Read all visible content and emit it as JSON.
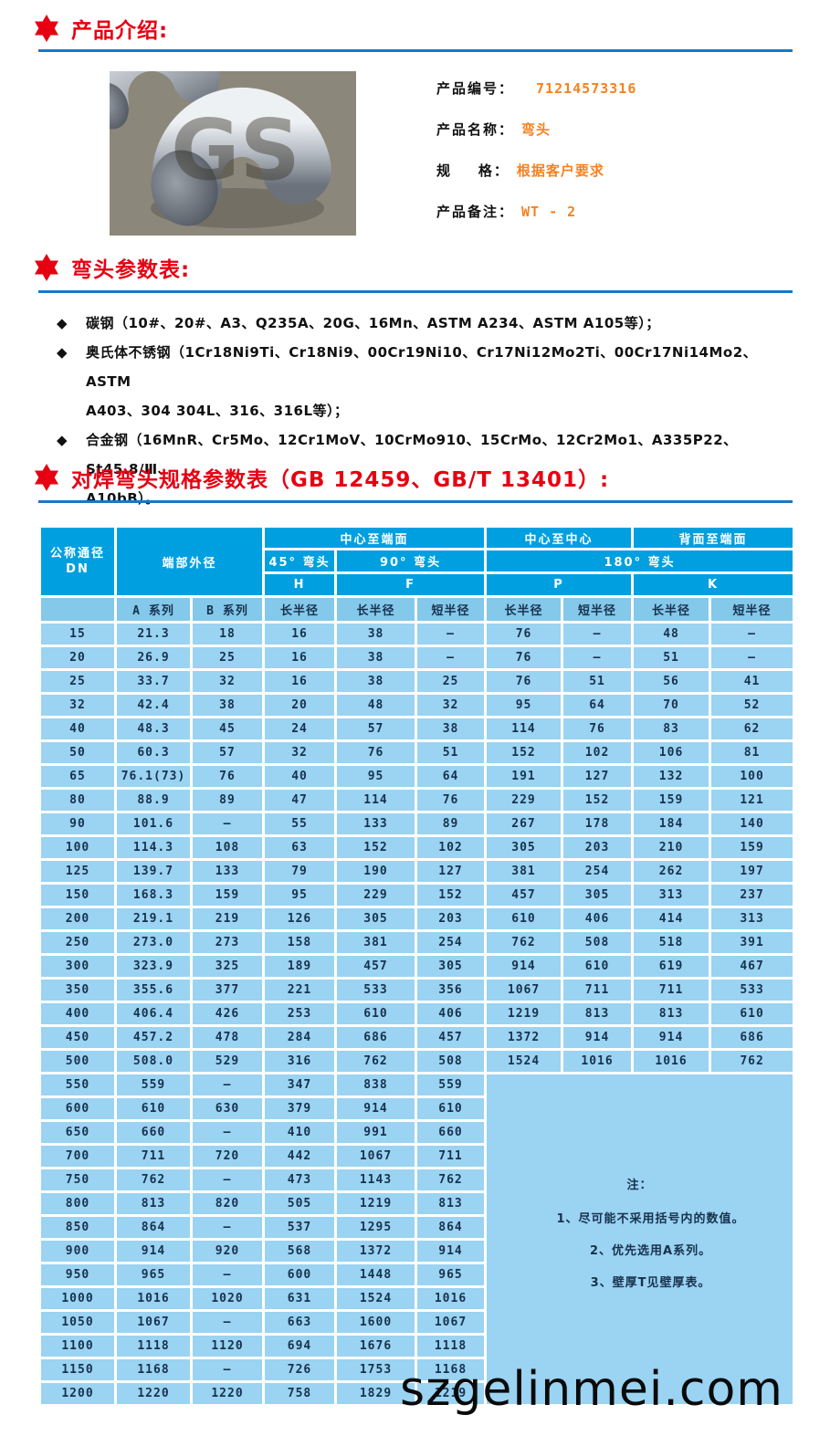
{
  "sections": {
    "intro_title": "产品介绍:",
    "params_title": "弯头参数表:",
    "table_title": "对焊弯头规格参数表（GB 12459、GB/T 13401）:"
  },
  "product": {
    "code_label": "产品编号：",
    "code": "71214573316",
    "name_label": "产品名称：",
    "name": "弯头",
    "spec_label": "规    格：",
    "spec": "根据客户要求",
    "remark_label": "产品备注：",
    "remark": "WT - 2"
  },
  "product_image": {
    "watermark": "GS"
  },
  "materials": {
    "items": [
      {
        "bullet": "◆",
        "lines": [
          "碳钢（10#、20#、A3、Q235A、20G、16Mn、ASTM A234、ASTM A105等）；"
        ]
      },
      {
        "bullet": "◆",
        "lines": [
          "奥氏体不锈钢（1Cr18Ni9Ti、Cr18Ni9、00Cr19Ni10、Cr17Ni12Mo2Ti、00Cr17Ni14Mo2、ASTM",
          "A403、304 304L、316、316L等）；"
        ]
      },
      {
        "bullet": "◆",
        "lines": [
          "合金钢（16MnR、Cr5Mo、12Cr1MoV、10CrMo910、15CrMo、12Cr2Mo1、A335P22、St45.8/Ⅲ、",
          "A10bB）。"
        ]
      }
    ]
  },
  "table": {
    "header": {
      "dn_line1": "公称通径",
      "dn_line2": "DN",
      "end_od": "端部外径",
      "center_to_end": "中心至端面",
      "center_to_center": "中心至中心",
      "back_to_end": "背面至端面",
      "elbow45": "45° 弯头",
      "elbow90": "90° 弯头",
      "elbow180": "180° 弯头",
      "h": "H",
      "f": "F",
      "p": "P",
      "k": "K",
      "series_a": "A 系列",
      "series_b": "B 系列",
      "long_radius": "长半径",
      "short_radius": "短半径"
    },
    "full_rows": [
      [
        "15",
        "21.3",
        "18",
        "16",
        "38",
        "—",
        "76",
        "—",
        "48",
        "—"
      ],
      [
        "20",
        "26.9",
        "25",
        "16",
        "38",
        "—",
        "76",
        "—",
        "51",
        "—"
      ],
      [
        "25",
        "33.7",
        "32",
        "16",
        "38",
        "25",
        "76",
        "51",
        "56",
        "41"
      ],
      [
        "32",
        "42.4",
        "38",
        "20",
        "48",
        "32",
        "95",
        "64",
        "70",
        "52"
      ],
      [
        "40",
        "48.3",
        "45",
        "24",
        "57",
        "38",
        "114",
        "76",
        "83",
        "62"
      ],
      [
        "50",
        "60.3",
        "57",
        "32",
        "76",
        "51",
        "152",
        "102",
        "106",
        "81"
      ],
      [
        "65",
        "76.1(73)",
        "76",
        "40",
        "95",
        "64",
        "191",
        "127",
        "132",
        "100"
      ],
      [
        "80",
        "88.9",
        "89",
        "47",
        "114",
        "76",
        "229",
        "152",
        "159",
        "121"
      ],
      [
        "90",
        "101.6",
        "—",
        "55",
        "133",
        "89",
        "267",
        "178",
        "184",
        "140"
      ],
      [
        "100",
        "114.3",
        "108",
        "63",
        "152",
        "102",
        "305",
        "203",
        "210",
        "159"
      ],
      [
        "125",
        "139.7",
        "133",
        "79",
        "190",
        "127",
        "381",
        "254",
        "262",
        "197"
      ],
      [
        "150",
        "168.3",
        "159",
        "95",
        "229",
        "152",
        "457",
        "305",
        "313",
        "237"
      ],
      [
        "200",
        "219.1",
        "219",
        "126",
        "305",
        "203",
        "610",
        "406",
        "414",
        "313"
      ],
      [
        "250",
        "273.0",
        "273",
        "158",
        "381",
        "254",
        "762",
        "508",
        "518",
        "391"
      ],
      [
        "300",
        "323.9",
        "325",
        "189",
        "457",
        "305",
        "914",
        "610",
        "619",
        "467"
      ],
      [
        "350",
        "355.6",
        "377",
        "221",
        "533",
        "356",
        "1067",
        "711",
        "711",
        "533"
      ],
      [
        "400",
        "406.4",
        "426",
        "253",
        "610",
        "406",
        "1219",
        "813",
        "813",
        "610"
      ],
      [
        "450",
        "457.2",
        "478",
        "284",
        "686",
        "457",
        "1372",
        "914",
        "914",
        "686"
      ],
      [
        "500",
        "508.0",
        "529",
        "316",
        "762",
        "508",
        "1524",
        "1016",
        "1016",
        "762"
      ]
    ],
    "short_rows": [
      [
        "550",
        "559",
        "—",
        "347",
        "838",
        "559"
      ],
      [
        "600",
        "610",
        "630",
        "379",
        "914",
        "610"
      ],
      [
        "650",
        "660",
        "—",
        "410",
        "991",
        "660"
      ],
      [
        "700",
        "711",
        "720",
        "442",
        "1067",
        "711"
      ],
      [
        "750",
        "762",
        "—",
        "473",
        "1143",
        "762"
      ],
      [
        "800",
        "813",
        "820",
        "505",
        "1219",
        "813"
      ],
      [
        "850",
        "864",
        "—",
        "537",
        "1295",
        "864"
      ],
      [
        "900",
        "914",
        "920",
        "568",
        "1372",
        "914"
      ],
      [
        "950",
        "965",
        "—",
        "600",
        "1448",
        "965"
      ],
      [
        "1000",
        "1016",
        "1020",
        "631",
        "1524",
        "1016"
      ],
      [
        "1050",
        "1067",
        "—",
        "663",
        "1600",
        "1067"
      ],
      [
        "1100",
        "1118",
        "1120",
        "694",
        "1676",
        "1118"
      ],
      [
        "1150",
        "1168",
        "—",
        "726",
        "1753",
        "1168"
      ],
      [
        "1200",
        "1220",
        "1220",
        "758",
        "1829",
        "1219"
      ]
    ],
    "note": {
      "title": "注：",
      "items": [
        "1、尽可能不采用括号内的数值。",
        "2、优先选用A系列。",
        "3、壁厚T见壁厚表。"
      ]
    }
  },
  "watermark": "szgelinmei.com",
  "colors": {
    "heading_red": "#e60012",
    "rule_blue": "#1778c8",
    "value_orange": "#f5821f",
    "table_header_blue": "#00a0e0",
    "table_subheader_blue": "#84c8ea",
    "table_cell_blue": "#9bd3f2",
    "cell_text_navy": "#17324e"
  }
}
